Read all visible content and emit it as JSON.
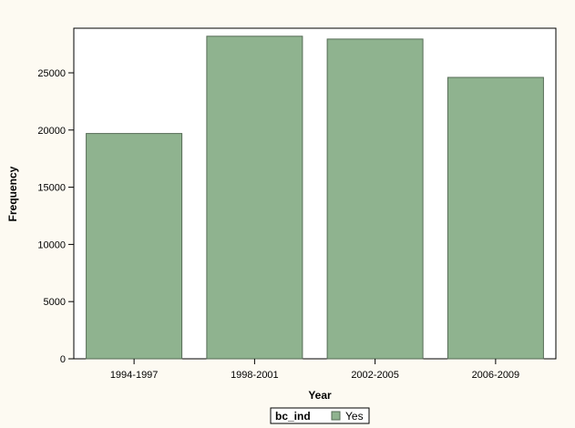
{
  "chart_data": {
    "type": "bar",
    "categories": [
      "1994-1997",
      "1998-2001",
      "2002-2005",
      "2006-2009"
    ],
    "series": [
      {
        "name": "Yes",
        "values": [
          19700,
          28200,
          27950,
          24600
        ]
      }
    ],
    "xlabel": "Year",
    "ylabel": "Frequency",
    "ylim": [
      0,
      28900
    ],
    "yticks": [
      0,
      5000,
      10000,
      15000,
      20000,
      25000
    ],
    "grid": false,
    "legend": {
      "title": "bc_ind",
      "placement": "bottom-center"
    }
  },
  "colors": {
    "bar_fill": "#8fb38f",
    "bar_stroke": "#556b55",
    "background": "#fdfaf2",
    "plot_background": "#ffffff"
  }
}
